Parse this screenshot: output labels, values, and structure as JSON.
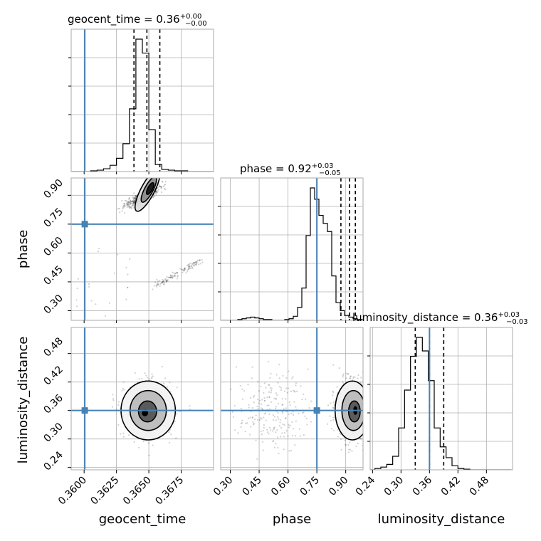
{
  "chart_data": {
    "type": "corner",
    "parameters": [
      "geocent_time",
      "phase",
      "luminosity_distance"
    ],
    "injection": {
      "geocent_time": 0.36005,
      "phase": 0.75,
      "luminosity_distance": 0.36
    },
    "colors": {
      "truth": "#4682b4",
      "hist": "#000000",
      "grid": "#b0b0b0",
      "frame": "#aaaaaa"
    },
    "ranges": {
      "geocent_time": [
        0.359,
        0.37
      ],
      "phase": [
        0.25,
        0.99
      ],
      "luminosity_distance": [
        0.235,
        0.535
      ]
    },
    "ticks": {
      "geocent_time": {
        "values": [
          0.36,
          0.3625,
          0.365,
          0.3675
        ],
        "labels": [
          "0.3600",
          "0.3625",
          "0.3650",
          "0.3675"
        ]
      },
      "phase": {
        "values": [
          0.3,
          0.45,
          0.6,
          0.75,
          0.9
        ],
        "labels": [
          "0.30",
          "0.45",
          "0.60",
          "0.75",
          "0.90"
        ]
      },
      "luminosity_distance": {
        "values": [
          0.24,
          0.3,
          0.36,
          0.42,
          0.48
        ],
        "labels": [
          "0.24",
          "0.30",
          "0.36",
          "0.42",
          "0.48"
        ]
      }
    },
    "titles": [
      {
        "param": "geocent_time",
        "text": "geocent_time = 0.36",
        "sup": "+0.00",
        "sub": "−0.00"
      },
      {
        "param": "phase",
        "text": "phase = 0.92",
        "sup": "+0.03",
        "sub": "−0.05"
      },
      {
        "param": "luminosity_distance",
        "text": "luminosity_distance = 0.36",
        "sup": "+0.03",
        "sub": "−0.03"
      }
    ],
    "axis_labels": {
      "geocent_time": "geocent_time",
      "phase": "phase",
      "luminosity_distance": "luminosity_distance"
    },
    "quantiles": {
      "geocent_time": [
        0.36385,
        0.36485,
        0.36585
      ],
      "phase": [
        0.875,
        0.92,
        0.95
      ],
      "luminosity_distance": [
        0.33,
        0.36,
        0.39
      ]
    },
    "histograms": {
      "geocent_time": {
        "x_start": 0.359,
        "bin_width": 0.0005,
        "counts": [
          0,
          0,
          0,
          1,
          2,
          4,
          9,
          19,
          40,
          90,
          190,
          170,
          60,
          10,
          3,
          2,
          1,
          1,
          0,
          0,
          0,
          0
        ]
      },
      "phase": {
        "x_start": 0.25,
        "bin_width": 0.0222,
        "counts": [
          0,
          0,
          0,
          0,
          1,
          2,
          3,
          4,
          3,
          2,
          1,
          1,
          0,
          0,
          0,
          1,
          2,
          5,
          16,
          40,
          105,
          164,
          150,
          130,
          120,
          110,
          55,
          22,
          12,
          6,
          4,
          2,
          1,
          1
        ]
      },
      "luminosity_distance": {
        "x_start": 0.2325,
        "bin_width": 0.0125,
        "counts": [
          0,
          2,
          4,
          8,
          20,
          62,
          118,
          168,
          196,
          176,
          132,
          62,
          34,
          18,
          6,
          2,
          1,
          0,
          0,
          0,
          0,
          0,
          0,
          0
        ]
      }
    },
    "scatter_notes": "2D panels show sample scatter with filled density contours (1-2-3 sigma)"
  }
}
